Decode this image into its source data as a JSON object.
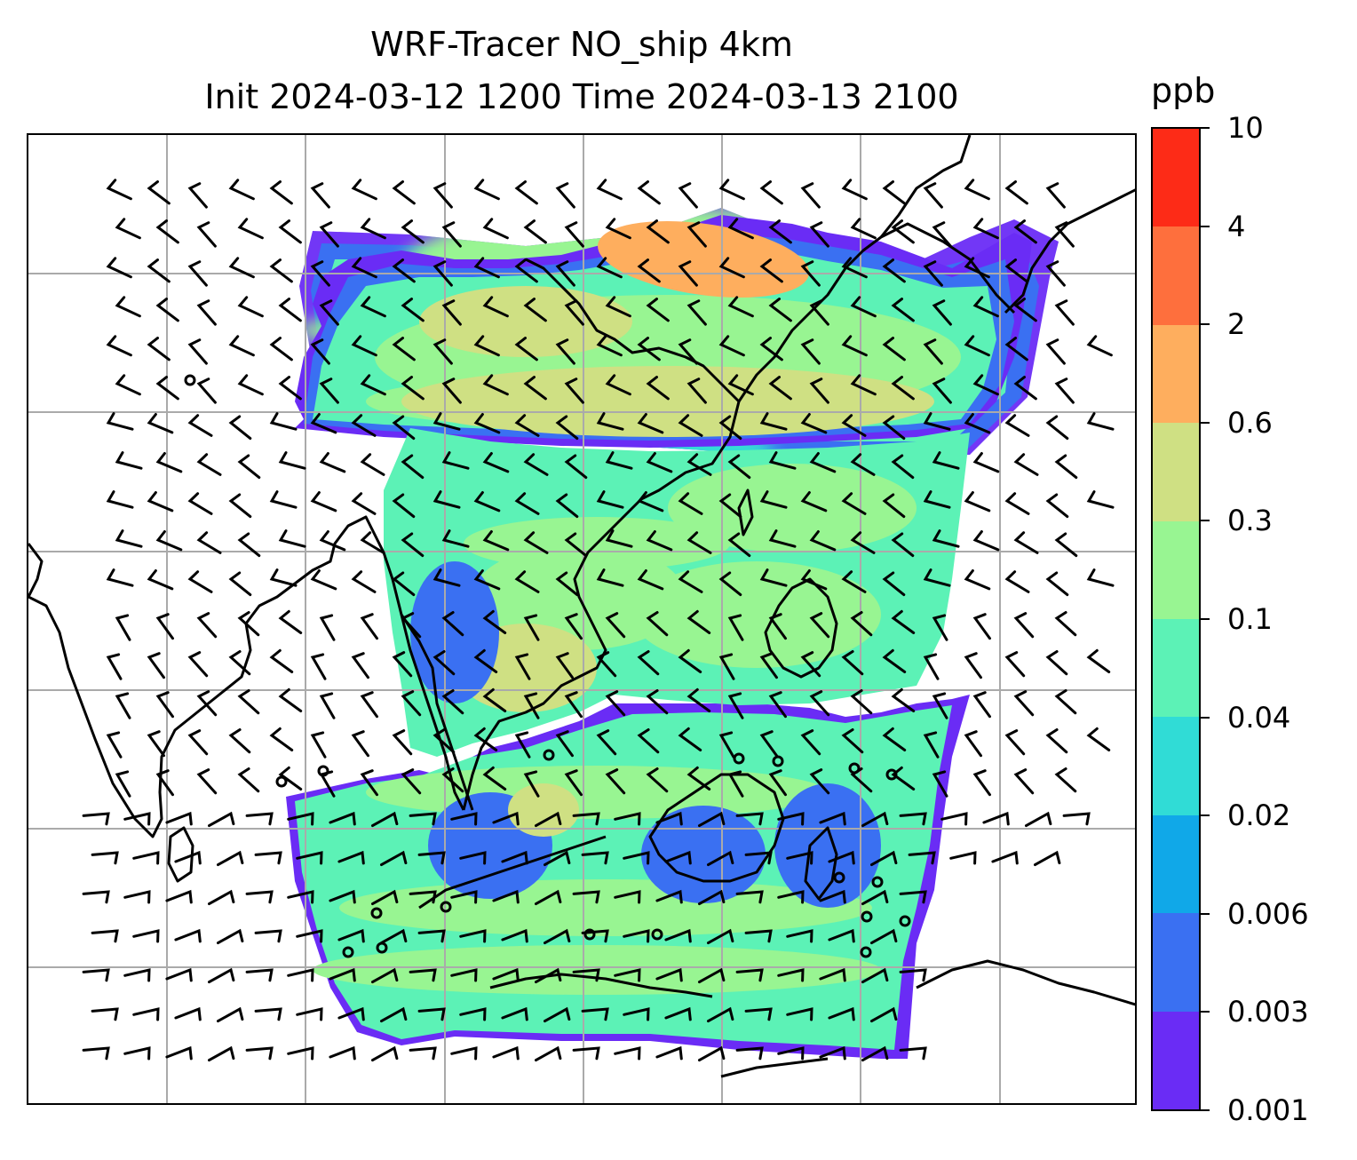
{
  "title": {
    "line1": "WRF-Tracer NO_ship 4km",
    "line2": "Init 2024-03-12 1200 Time 2024-03-13 2100"
  },
  "colorbar": {
    "units": "ppb",
    "levels": [
      "0.001",
      "0.003",
      "0.006",
      "0.02",
      "0.04",
      "0.1",
      "0.3",
      "0.6",
      "2",
      "4",
      "10"
    ],
    "colors": [
      "#6a2cf5",
      "#3a70f2",
      "#10a8e8",
      "#30dcd6",
      "#5cf2b6",
      "#98f592",
      "#cfe083",
      "#feae5e",
      "#fe6f3d",
      "#fd2b17"
    ]
  },
  "map": {
    "field": "NO_ship",
    "projection_grid_lines": true,
    "land_color": "#ffffff",
    "coastline_color": "#000000",
    "gridline_color": "#aaaaaa",
    "wind_barbs": true
  }
}
